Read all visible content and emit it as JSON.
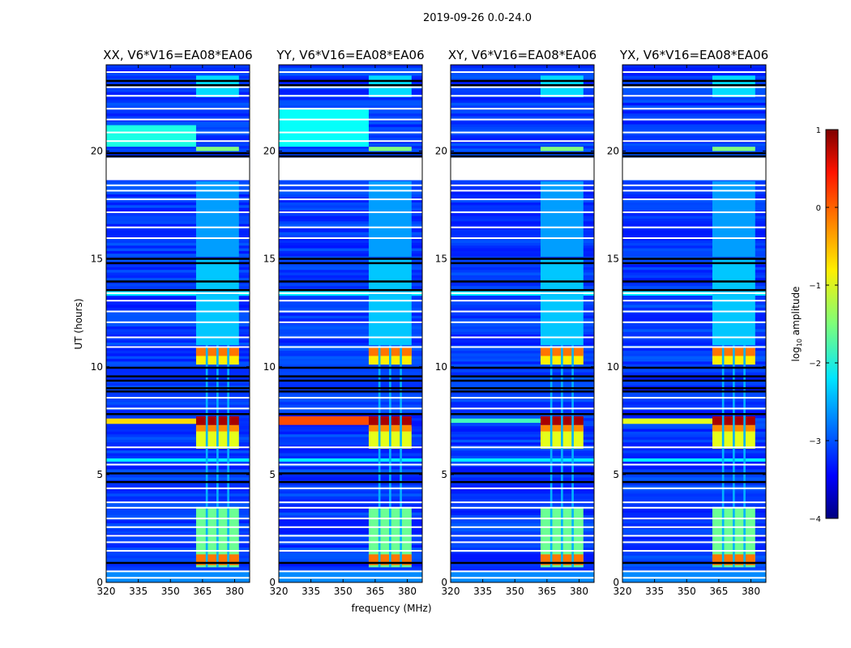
{
  "chart_data": {
    "type": "heatmap",
    "suptitle": "2019-09-26 0.0-24.0",
    "xlabel": "frequency (MHz)",
    "ylabel": "UT (hours)",
    "xlim": [
      320,
      387
    ],
    "ylim": [
      0,
      24
    ],
    "xticks": [
      320,
      335,
      350,
      365,
      380
    ],
    "yticks": [
      0,
      5,
      10,
      15,
      20
    ],
    "colorbar": {
      "label_main": "log",
      "label_sub": "10",
      "label_rest": " amplitude",
      "range": [
        -4,
        1
      ],
      "ticks": [
        1,
        0,
        -1,
        -2,
        -3,
        -4
      ],
      "tick_labels": [
        "1",
        "0",
        "−1",
        "−2",
        "−3",
        "−4"
      ],
      "colormap": "jet"
    },
    "background_value": -3.1,
    "no_data_blocks": [
      [
        18.65,
        19.7
      ]
    ],
    "no_data_lines": [
      0.25,
      0.55,
      1.5,
      1.9,
      2.2,
      2.6,
      3.0,
      3.5,
      3.75,
      4.4,
      5.5,
      6.3,
      8.1,
      8.6,
      10.95,
      11.4,
      12.1,
      12.6,
      13.1,
      13.45,
      16.0,
      16.5,
      17.2,
      17.8,
      18.2,
      18.45,
      20.5,
      20.9,
      21.5,
      22.0,
      22.6,
      23.0,
      23.7
    ],
    "flagged_lines": [
      0.95,
      4.7,
      5.1,
      7.85,
      8.9,
      9.05,
      9.4,
      9.6,
      10.0,
      13.6,
      14.0,
      14.85,
      15.05,
      19.8,
      19.95,
      23.1,
      23.3
    ],
    "common_features": [
      [
        0.0,
        0.5,
        320,
        387,
        -2.7
      ],
      [
        5.6,
        5.75,
        320,
        387,
        -2.2
      ],
      [
        13.3,
        13.5,
        320,
        387,
        -2.2
      ],
      [
        0.7,
        3.5,
        362,
        382,
        -1.6
      ],
      [
        0.8,
        1.3,
        362,
        382,
        -0.2
      ],
      [
        6.2,
        7.2,
        362,
        382,
        -1.0
      ],
      [
        7.0,
        7.3,
        362,
        382,
        -0.3
      ],
      [
        7.3,
        7.7,
        362,
        382,
        0.8
      ],
      [
        10.1,
        10.9,
        362,
        382,
        -0.8
      ],
      [
        10.5,
        10.9,
        362,
        382,
        -0.2
      ],
      [
        11.0,
        15.0,
        362,
        382,
        -2.4
      ],
      [
        15.1,
        18.6,
        362,
        382,
        -2.6
      ],
      [
        20.0,
        20.2,
        362,
        382,
        -1.5
      ],
      [
        22.5,
        23.5,
        362,
        382,
        -2.3
      ],
      [
        0.7,
        11.0,
        366.5,
        367.5,
        -2.5
      ],
      [
        0.7,
        11.0,
        371.5,
        372.5,
        -2.5
      ],
      [
        0.7,
        11.0,
        376.5,
        377.5,
        -2.5
      ]
    ],
    "panels": [
      {
        "title": "XX, V6*V16=EA08*EA06",
        "features": [
          [
            7.35,
            7.6,
            320,
            362,
            -0.7
          ],
          [
            20.2,
            21.2,
            320,
            362,
            -2.0
          ]
        ]
      },
      {
        "title": "YY, V6*V16=EA08*EA06",
        "features": [
          [
            7.3,
            7.7,
            320,
            362,
            0.0
          ],
          [
            20.2,
            22.0,
            320,
            362,
            -2.1
          ]
        ]
      },
      {
        "title": "XY, V6*V16=EA08*EA06",
        "features": [
          [
            7.4,
            7.6,
            320,
            362,
            -1.8
          ]
        ]
      },
      {
        "title": "YX, V6*V16=EA08*EA06",
        "features": [
          [
            7.35,
            7.6,
            320,
            362,
            -1.0
          ]
        ]
      }
    ]
  }
}
